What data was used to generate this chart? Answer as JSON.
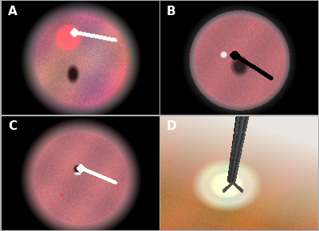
{
  "figsize": [
    4.0,
    2.9
  ],
  "dpi": 100,
  "bg_color": "#b0b0b0",
  "panel_labels": [
    "A",
    "B",
    "C",
    "D"
  ],
  "label_colors": [
    "white",
    "white",
    "white",
    "white"
  ],
  "wspace": 0.008,
  "hspace": 0.008
}
